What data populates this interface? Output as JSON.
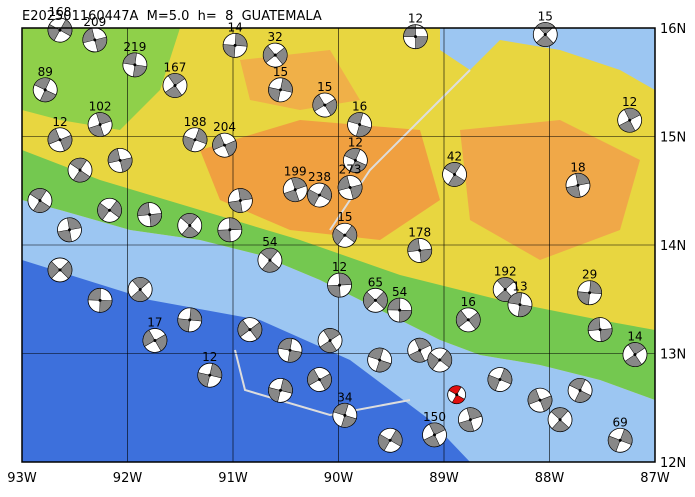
{
  "map": {
    "title": "E202501160447A  M=5.0  h=  8  GUATEMALA",
    "xlim": [
      -93,
      -87
    ],
    "ylim": [
      12,
      16
    ],
    "xticks": [
      {
        "value": -93,
        "label": "93W"
      },
      {
        "value": -92,
        "label": "92W"
      },
      {
        "value": -91,
        "label": "91W"
      },
      {
        "value": -90,
        "label": "90W"
      },
      {
        "value": -89,
        "label": "89W"
      },
      {
        "value": -88,
        "label": "88W"
      },
      {
        "value": -87,
        "label": "87W"
      }
    ],
    "yticks": [
      {
        "value": 12,
        "label": "12N"
      },
      {
        "value": 13,
        "label": "13N"
      },
      {
        "value": 14,
        "label": "14N"
      },
      {
        "value": 15,
        "label": "15N"
      },
      {
        "value": 16,
        "label": "16N"
      }
    ],
    "main_event": {
      "lon": -88.88,
      "lat": 12.62
    },
    "events": [
      {
        "lon": -89.27,
        "lat": 15.92,
        "label": "12"
      },
      {
        "lon": -88.04,
        "lat": 15.94,
        "label": "15"
      },
      {
        "lon": -90.98,
        "lat": 15.84,
        "label": "14"
      },
      {
        "lon": -90.6,
        "lat": 15.75,
        "label": "32"
      },
      {
        "lon": -91.93,
        "lat": 15.66,
        "label": "219"
      },
      {
        "lon": -91.55,
        "lat": 15.47,
        "label": "167"
      },
      {
        "lon": -90.55,
        "lat": 15.43,
        "label": "15"
      },
      {
        "lon": -90.13,
        "lat": 15.29,
        "label": "15"
      },
      {
        "lon": -89.8,
        "lat": 15.11,
        "label": "16"
      },
      {
        "lon": -87.24,
        "lat": 15.15,
        "label": "12"
      },
      {
        "lon": -91.36,
        "lat": 14.97,
        "label": "188"
      },
      {
        "lon": -91.08,
        "lat": 14.92,
        "label": "204"
      },
      {
        "lon": -89.84,
        "lat": 14.78,
        "label": "12"
      },
      {
        "lon": -90.41,
        "lat": 14.51,
        "label": "199"
      },
      {
        "lon": -90.18,
        "lat": 14.46,
        "label": "238"
      },
      {
        "lon": -89.89,
        "lat": 14.53,
        "label": "273"
      },
      {
        "lon": -88.9,
        "lat": 14.65,
        "label": "42"
      },
      {
        "lon": -87.73,
        "lat": 14.55,
        "label": "18"
      },
      {
        "lon": -89.94,
        "lat": 14.09,
        "label": "15"
      },
      {
        "lon": -89.23,
        "lat": 13.95,
        "label": "178"
      },
      {
        "lon": -90.65,
        "lat": 13.86,
        "label": "54"
      },
      {
        "lon": -89.99,
        "lat": 13.63,
        "label": "12"
      },
      {
        "lon": -89.65,
        "lat": 13.49,
        "label": "65"
      },
      {
        "lon": -89.42,
        "lat": 13.4,
        "label": "54"
      },
      {
        "lon": -88.42,
        "lat": 13.59,
        "label": "192"
      },
      {
        "lon": -87.62,
        "lat": 13.56,
        "label": "29"
      },
      {
        "lon": -88.77,
        "lat": 13.31,
        "label": "16"
      },
      {
        "lon": -88.28,
        "lat": 13.45,
        "label": "13"
      },
      {
        "lon": -87.19,
        "lat": 12.99,
        "label": "14"
      },
      {
        "lon": -91.22,
        "lat": 12.8,
        "label": "12"
      },
      {
        "lon": -91.74,
        "lat": 13.12,
        "label": "17"
      },
      {
        "lon": -89.94,
        "lat": 12.43,
        "label": "34"
      },
      {
        "lon": -89.09,
        "lat": 12.25,
        "label": "150"
      },
      {
        "lon": -87.33,
        "lat": 12.2,
        "label": "69"
      },
      {
        "lon": -92.64,
        "lat": 14.97,
        "label": "12"
      },
      {
        "lon": -92.78,
        "lat": 15.43,
        "label": "89"
      },
      {
        "lon": -92.26,
        "lat": 15.11,
        "label": "102"
      },
      {
        "lon": -92.64,
        "lat": 15.98,
        "label": "168"
      },
      {
        "lon": -92.31,
        "lat": 15.89,
        "label": "209"
      },
      {
        "lon": -92.83,
        "lat": 14.41
      },
      {
        "lon": -92.55,
        "lat": 14.14
      },
      {
        "lon": -92.17,
        "lat": 14.32
      },
      {
        "lon": -91.79,
        "lat": 14.28
      },
      {
        "lon": -91.41,
        "lat": 14.18
      },
      {
        "lon": -91.03,
        "lat": 14.14
      },
      {
        "lon": -92.64,
        "lat": 13.77
      },
      {
        "lon": -92.26,
        "lat": 13.49
      },
      {
        "lon": -91.88,
        "lat": 13.59
      },
      {
        "lon": -91.41,
        "lat": 13.31
      },
      {
        "lon": -90.84,
        "lat": 13.22
      },
      {
        "lon": -90.46,
        "lat": 13.03
      },
      {
        "lon": -90.08,
        "lat": 13.12
      },
      {
        "lon": -90.55,
        "lat": 12.66
      },
      {
        "lon": -90.18,
        "lat": 12.76
      },
      {
        "lon": -89.61,
        "lat": 12.94
      },
      {
        "lon": -89.23,
        "lat": 13.03
      },
      {
        "lon": -88.47,
        "lat": 12.76
      },
      {
        "lon": -88.09,
        "lat": 12.57
      },
      {
        "lon": -87.71,
        "lat": 12.66
      },
      {
        "lon": -88.75,
        "lat": 12.39
      },
      {
        "lon": -89.51,
        "lat": 12.2
      },
      {
        "lon": -92.07,
        "lat": 14.78
      },
      {
        "lon": -92.45,
        "lat": 14.69
      },
      {
        "lon": -90.93,
        "lat": 14.41
      },
      {
        "lon": -89.04,
        "lat": 12.94
      },
      {
        "lon": -87.52,
        "lat": 13.22
      },
      {
        "lon": -87.9,
        "lat": 12.39
      }
    ]
  }
}
